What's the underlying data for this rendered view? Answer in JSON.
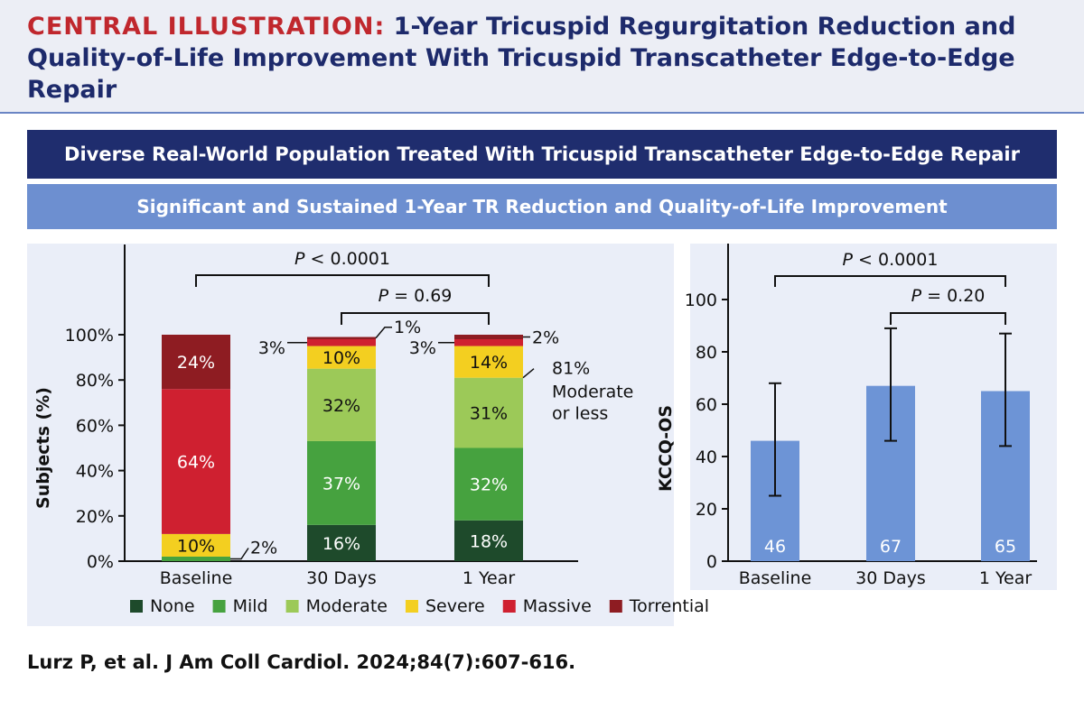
{
  "header": {
    "label": "CENTRAL ILLUSTRATION:",
    "title": "1-Year Tricuspid Regurgitation Reduction and Quality-of-Life Improvement With Tricuspid Transcatheter Edge-to-Edge Repair"
  },
  "band1": "Diverse Real-World Population Treated With Tricuspid Transcatheter Edge-to-Edge Repair",
  "band2": "Significant and Sustained 1-Year TR Reduction and Quality-of-Life Improvement",
  "citation": "Lurz P, et al. J Am Coll Cardiol. 2024;84(7):607-616.",
  "chart_data": [
    {
      "type": "bar",
      "stacked": true,
      "ylabel": "Subjects (%)",
      "xlabel": "",
      "ylim": [
        0,
        100
      ],
      "ytick_labels": [
        "0%",
        "20%",
        "40%",
        "60%",
        "80%",
        "100%"
      ],
      "categories": [
        "Baseline",
        "30 Days",
        "1 Year"
      ],
      "series": [
        {
          "name": "None",
          "color": "#1e4a2b",
          "values": [
            0,
            16,
            18
          ],
          "labels": [
            "",
            "16%",
            "18%"
          ]
        },
        {
          "name": "Mild",
          "color": "#46a23f",
          "values": [
            2,
            37,
            32
          ],
          "labels": [
            "2%",
            "37%",
            "32%"
          ]
        },
        {
          "name": "Moderate",
          "color": "#9cc958",
          "values": [
            0,
            32,
            31
          ],
          "labels": [
            "",
            "32%",
            "31%"
          ]
        },
        {
          "name": "Severe",
          "color": "#f3cf20",
          "values": [
            10,
            10,
            14
          ],
          "labels": [
            "10%",
            "10%",
            "14%"
          ]
        },
        {
          "name": "Massive",
          "color": "#cf2030",
          "values": [
            64,
            3,
            3
          ],
          "labels": [
            "64%",
            "3%",
            "3%"
          ]
        },
        {
          "name": "Torrential",
          "color": "#8e1c22",
          "values": [
            24,
            1,
            2
          ],
          "labels": [
            "24%",
            "1%",
            "2%"
          ]
        }
      ],
      "annotations": {
        "brackets": [
          {
            "label": "P < 0.0001",
            "from": "Baseline",
            "to": "1 Year"
          },
          {
            "label": "P = 0.69",
            "from": "30 Days",
            "to": "1 Year"
          }
        ],
        "note_value": "81%",
        "note_text": [
          "Moderate",
          "or less"
        ]
      },
      "legend": "bottom"
    },
    {
      "type": "bar",
      "ylabel": "KCCQ-OS",
      "xlabel": "",
      "ylim": [
        0,
        100
      ],
      "yticks": [
        0,
        20,
        40,
        60,
        80,
        100
      ],
      "categories": [
        "Baseline",
        "30 Days",
        "1 Year"
      ],
      "values": [
        46,
        67,
        65
      ],
      "value_labels": [
        "46",
        "67",
        "65"
      ],
      "error_low": [
        25,
        46,
        44
      ],
      "error_high": [
        68,
        89,
        87
      ],
      "color": "#6d94d6",
      "brackets": [
        {
          "label": "P < 0.0001",
          "from": "Baseline",
          "to": "1 Year"
        },
        {
          "label": "P = 0.20",
          "from": "30 Days",
          "to": "1 Year"
        }
      ]
    }
  ]
}
